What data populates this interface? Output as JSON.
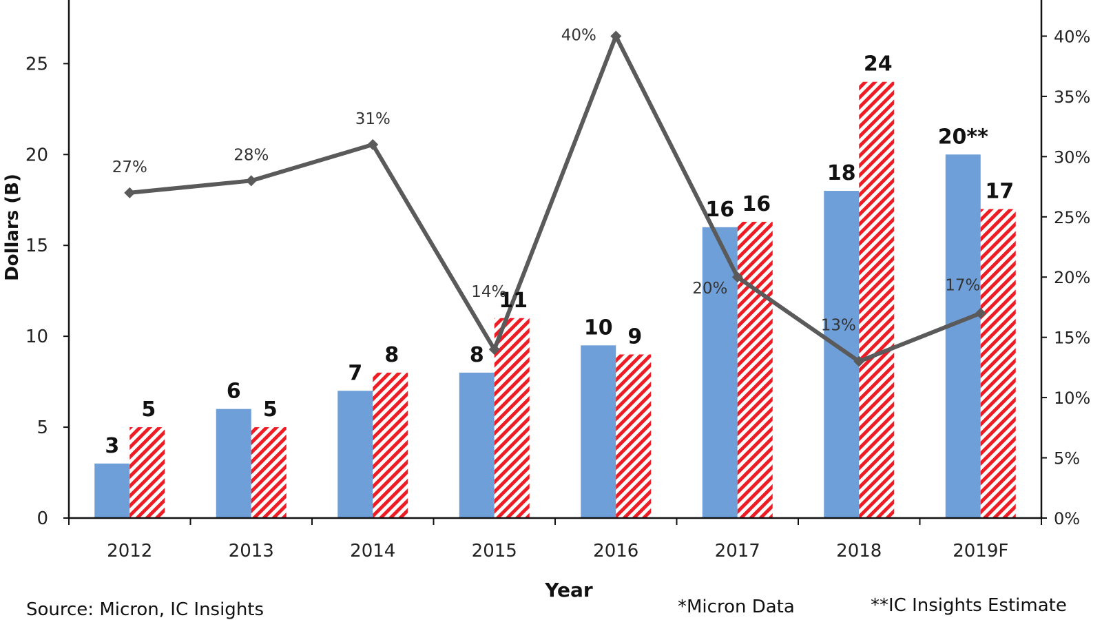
{
  "chart_data": {
    "type": "bar",
    "categories": [
      "2012",
      "2013",
      "2014",
      "2015",
      "2016",
      "2017",
      "2018",
      "2019F"
    ],
    "series": [
      {
        "type": "bar",
        "axis": "left",
        "color": "#6f9fd8",
        "pattern": "solid",
        "values": [
          3,
          6,
          7,
          8,
          9.5,
          16,
          18,
          20
        ],
        "value_labels": [
          "3",
          "6",
          "7",
          "8",
          "10",
          "16",
          "18",
          "20**"
        ]
      },
      {
        "type": "bar",
        "axis": "left",
        "color": "#ee1c25",
        "pattern": "diagonal-hatch",
        "values": [
          5,
          5,
          8,
          11,
          9,
          16.3,
          24,
          17
        ],
        "value_labels": [
          "5",
          "5",
          "8",
          "11",
          "9",
          "16",
          "24",
          "17"
        ]
      },
      {
        "type": "line",
        "axis": "right",
        "color": "#5a5a5a",
        "marker": "diamond",
        "values": [
          27,
          28,
          31,
          14,
          40,
          20,
          13,
          17
        ],
        "value_labels": [
          "27%",
          "28%",
          "31%",
          "14%",
          "40%",
          "20%",
          "13%",
          "17%"
        ]
      }
    ],
    "xlabel": "Year",
    "ylabel": "Dollars (B)",
    "ylim": [
      0,
      28.5
    ],
    "yticks": [
      "0",
      "5",
      "10",
      "15",
      "20",
      "25"
    ],
    "y2lim": [
      0,
      43
    ],
    "y2ticks": [
      "0%",
      "5%",
      "10%",
      "15%",
      "20%",
      "25%",
      "30%",
      "35%",
      "40%"
    ],
    "grid": false,
    "legend": "none"
  },
  "footer": {
    "source": "Source: Micron, IC Insights",
    "note1": "*Micron Data",
    "note2": "**IC Insights Estimate"
  }
}
